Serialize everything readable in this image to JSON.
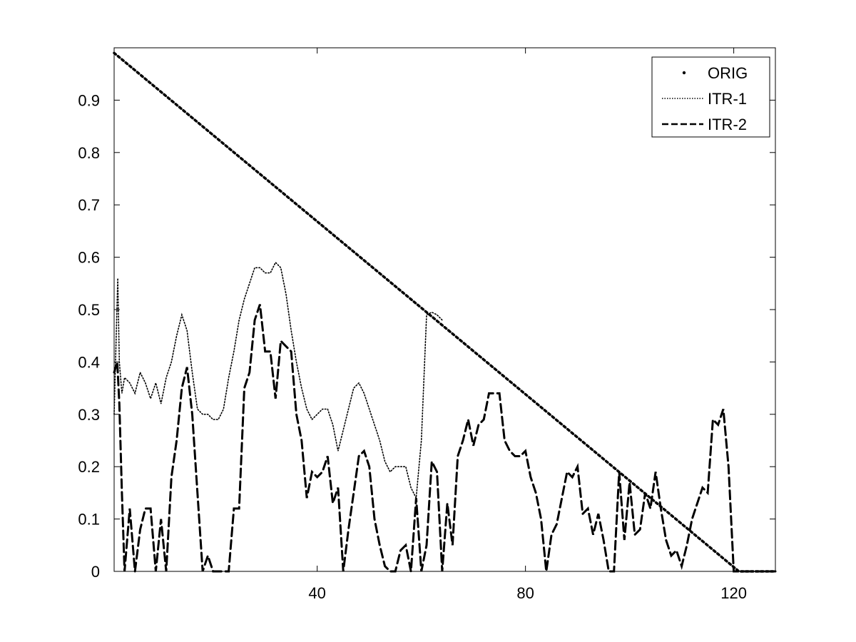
{
  "chart_data": {
    "type": "line",
    "title": "",
    "xlabel": "",
    "ylabel": "",
    "xlim": [
      1,
      128
    ],
    "ylim": [
      0,
      1
    ],
    "xticks": [
      40,
      80,
      120
    ],
    "yticks": [
      0,
      0.1,
      0.2,
      0.3,
      0.4,
      0.5,
      0.6,
      0.7,
      0.8,
      0.9
    ],
    "ytick_labels": [
      "0",
      "0.1",
      "0.2",
      "0.3",
      "0.4",
      "0.5",
      "0.6",
      "0.7",
      "0.8",
      "0.9"
    ],
    "xtick_labels": [
      "40",
      "80",
      "120"
    ],
    "grid": false,
    "legend_position": "top-right",
    "series": [
      {
        "name": "ORIG",
        "style": "dotted-markers",
        "x": [
          1,
          121,
          128
        ],
        "y": [
          0.99,
          0.0,
          0.0
        ]
      },
      {
        "name": "ITR-1",
        "style": "dotted",
        "x": [
          1,
          1.7,
          2,
          2.5,
          3,
          4,
          5,
          6,
          7,
          8,
          9,
          10,
          11,
          12,
          13,
          14,
          15,
          16,
          17,
          18,
          19,
          20,
          21,
          22,
          23,
          24,
          25,
          26,
          27,
          28,
          29,
          30,
          31,
          32,
          33,
          34,
          35,
          36,
          37,
          38,
          39,
          40,
          41,
          42,
          43,
          44,
          45,
          46,
          47,
          48,
          49,
          50,
          51,
          52,
          53,
          54,
          55,
          56,
          57,
          58,
          59,
          60,
          61,
          62,
          63,
          64
        ],
        "y": [
          0.3,
          0.56,
          0.4,
          0.34,
          0.37,
          0.36,
          0.34,
          0.38,
          0.36,
          0.33,
          0.36,
          0.32,
          0.37,
          0.4,
          0.45,
          0.49,
          0.46,
          0.38,
          0.31,
          0.3,
          0.3,
          0.29,
          0.29,
          0.31,
          0.37,
          0.42,
          0.48,
          0.52,
          0.55,
          0.58,
          0.58,
          0.57,
          0.57,
          0.59,
          0.58,
          0.53,
          0.46,
          0.4,
          0.35,
          0.31,
          0.29,
          0.3,
          0.31,
          0.31,
          0.28,
          0.23,
          0.27,
          0.31,
          0.35,
          0.36,
          0.34,
          0.31,
          0.28,
          0.25,
          0.21,
          0.19,
          0.2,
          0.2,
          0.2,
          0.16,
          0.14,
          0.25,
          0.49,
          0.495,
          0.49,
          0.48
        ]
      },
      {
        "name": "ITR-2",
        "style": "dashed",
        "x": [
          1,
          1.6,
          2,
          2.5,
          3,
          4,
          5,
          6,
          7,
          8,
          9,
          10,
          11,
          12,
          13,
          14,
          15,
          16,
          17,
          18,
          19,
          20,
          21,
          22,
          23,
          24,
          25,
          26,
          27,
          28,
          29,
          30,
          31,
          32,
          33,
          34,
          35,
          36,
          37,
          38,
          39,
          40,
          41,
          42,
          43,
          44,
          45,
          46,
          47,
          48,
          49,
          50,
          51,
          52,
          53,
          54,
          55,
          56,
          57,
          58,
          59,
          60,
          61,
          62,
          63,
          64,
          65,
          66,
          67,
          68,
          69,
          70,
          71,
          72,
          73,
          74,
          75,
          76,
          77,
          78,
          79,
          80,
          81,
          82,
          83,
          84,
          85,
          86,
          87,
          88,
          89,
          90,
          91,
          92,
          93,
          94,
          95,
          96,
          97,
          98,
          99,
          100,
          101,
          102,
          103,
          104,
          105,
          106,
          107,
          108,
          109,
          110,
          111,
          112,
          113,
          114,
          115,
          116,
          117,
          118,
          119,
          120,
          121,
          122,
          124,
          126,
          128
        ],
        "y": [
          0.38,
          0.4,
          0.32,
          0.15,
          0.0,
          0.12,
          0.0,
          0.08,
          0.12,
          0.12,
          0.0,
          0.1,
          0.0,
          0.18,
          0.25,
          0.35,
          0.39,
          0.3,
          0.15,
          0.0,
          0.03,
          0.0,
          0.0,
          0.0,
          0.0,
          0.12,
          0.12,
          0.35,
          0.38,
          0.48,
          0.51,
          0.42,
          0.42,
          0.33,
          0.44,
          0.43,
          0.42,
          0.3,
          0.25,
          0.14,
          0.19,
          0.18,
          0.19,
          0.22,
          0.13,
          0.16,
          0.0,
          0.08,
          0.15,
          0.22,
          0.23,
          0.2,
          0.1,
          0.05,
          0.01,
          0.0,
          0.0,
          0.04,
          0.05,
          0.0,
          0.14,
          0.0,
          0.05,
          0.21,
          0.19,
          0.0,
          0.13,
          0.05,
          0.22,
          0.25,
          0.29,
          0.24,
          0.28,
          0.29,
          0.34,
          0.34,
          0.34,
          0.25,
          0.23,
          0.22,
          0.22,
          0.23,
          0.18,
          0.15,
          0.1,
          0.0,
          0.07,
          0.09,
          0.14,
          0.19,
          0.18,
          0.2,
          0.11,
          0.12,
          0.07,
          0.11,
          0.06,
          0.0,
          0.0,
          0.19,
          0.06,
          0.17,
          0.07,
          0.08,
          0.15,
          0.12,
          0.19,
          0.12,
          0.06,
          0.03,
          0.04,
          0.01,
          0.05,
          0.1,
          0.13,
          0.16,
          0.15,
          0.29,
          0.28,
          0.31,
          0.2,
          0.0,
          0.0,
          0.0,
          0.0,
          0.0,
          0.0
        ]
      }
    ]
  },
  "colors": {
    "line": "#000000",
    "background": "#ffffff"
  }
}
